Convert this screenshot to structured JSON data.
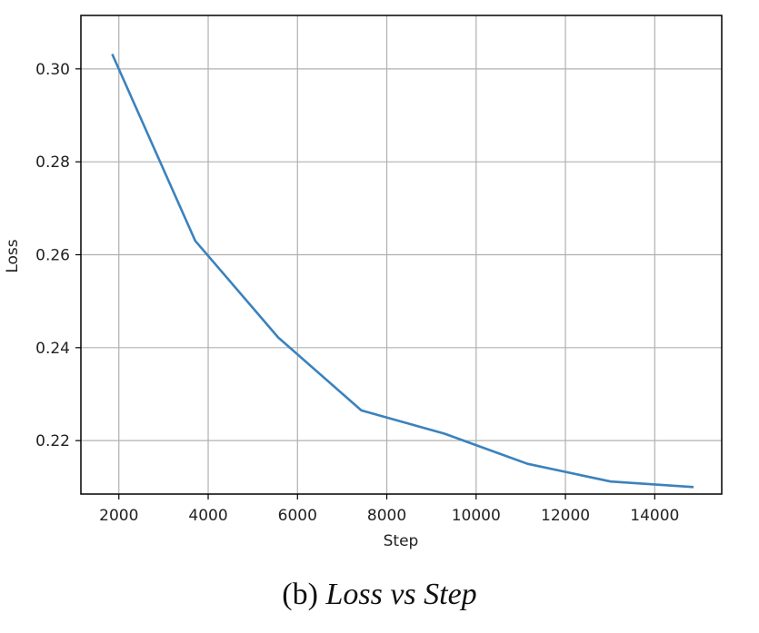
{
  "caption": {
    "prefix": "(b)",
    "title": "Loss vs Step"
  },
  "chart_data": {
    "type": "line",
    "xlabel": "Step",
    "ylabel": "Loss",
    "xlim": [
      1150,
      15500
    ],
    "ylim": [
      0.2085,
      0.3115
    ],
    "xticks": [
      2000,
      4000,
      6000,
      8000,
      10000,
      12000,
      14000
    ],
    "yticks": [
      0.22,
      0.24,
      0.26,
      0.28,
      0.3
    ],
    "ytick_labels": [
      "0.22",
      "0.24",
      "0.26",
      "0.28",
      "0.30"
    ],
    "grid": true,
    "line_color": "#3b82bd",
    "series": [
      {
        "x": [
          1850,
          3710,
          5570,
          7430,
          9290,
          11150,
          13010,
          14870
        ],
        "values": [
          0.3032,
          0.263,
          0.2422,
          0.2265,
          0.2215,
          0.215,
          0.2112,
          0.21
        ]
      }
    ]
  }
}
